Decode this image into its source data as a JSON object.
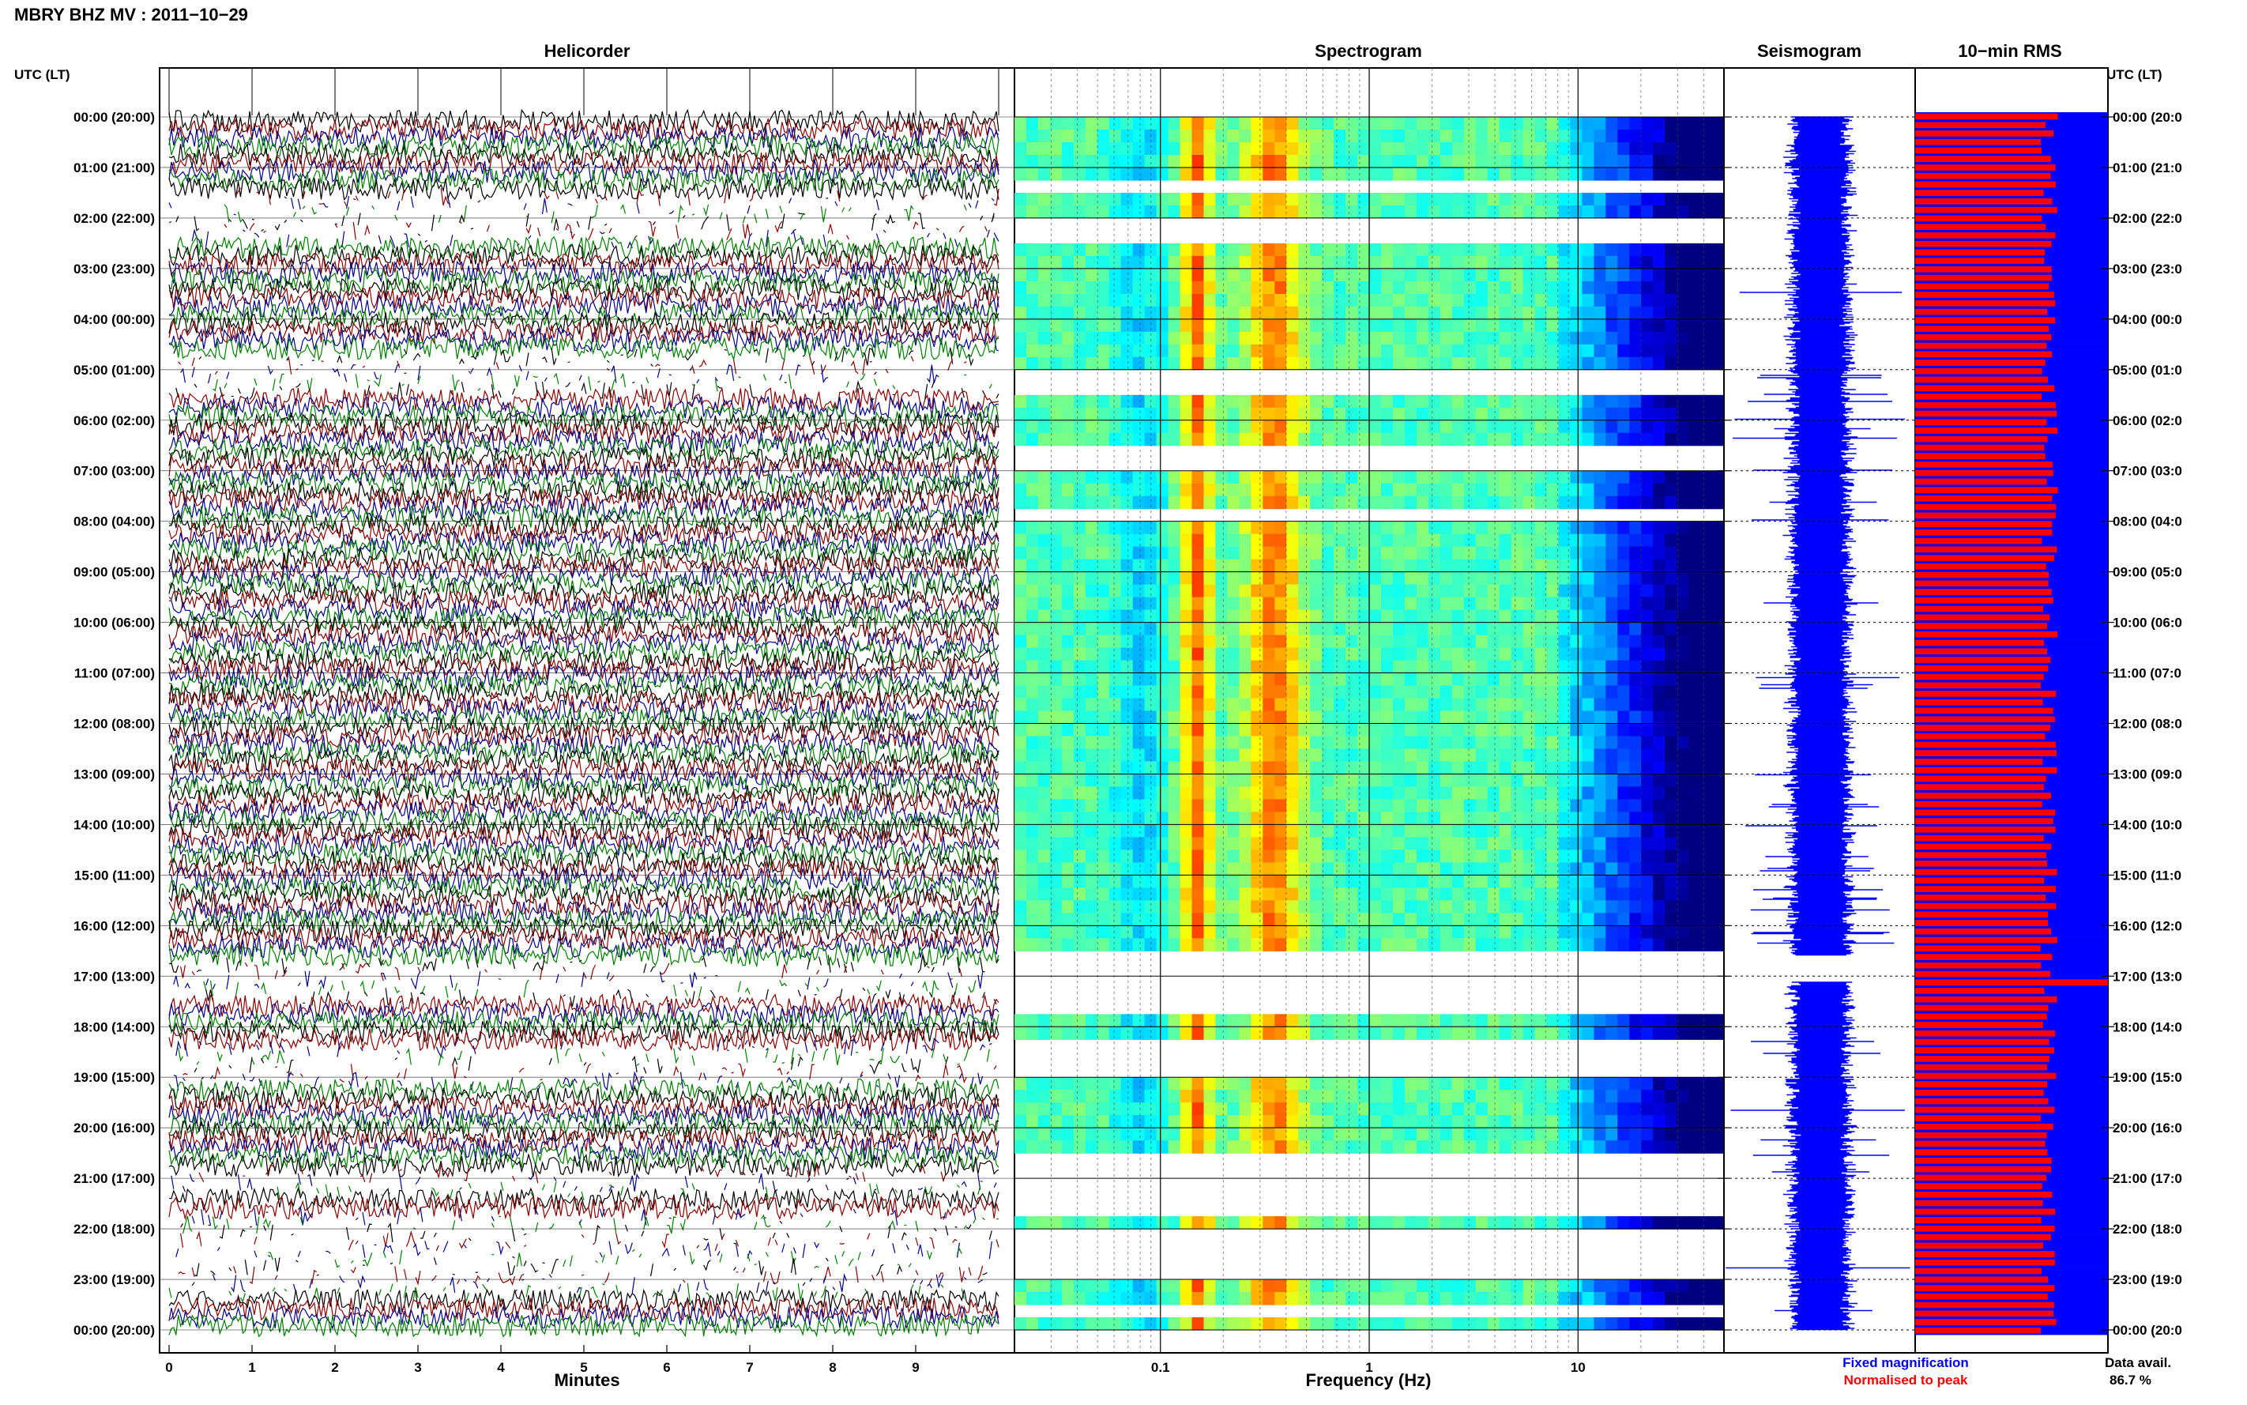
{
  "header": {
    "station_title": "MBRY BHZ MV : 2011−10−29"
  },
  "panels": {
    "helicorder": "Helicorder",
    "spectrogram": "Spectrogram",
    "seismogram": "Seismogram",
    "rms": "10−min RMS"
  },
  "axis_labels": {
    "left_time": "UTC (LT)",
    "right_time": "UTC (LT)",
    "helicorder_x": "Minutes",
    "spectrogram_x": "Frequency (Hz)"
  },
  "time_ticks": [
    "00:00 (20:00)",
    "01:00 (21:00)",
    "02:00 (22:00)",
    "03:00 (23:00)",
    "04:00 (00:00)",
    "05:00 (01:00)",
    "06:00 (02:00)",
    "07:00 (03:00)",
    "08:00 (04:00)",
    "09:00 (05:00)",
    "10:00 (06:00)",
    "11:00 (07:00)",
    "12:00 (08:00)",
    "13:00 (09:00)",
    "14:00 (10:00)",
    "15:00 (11:00)",
    "16:00 (12:00)",
    "17:00 (13:00)",
    "18:00 (14:00)",
    "19:00 (15:00)",
    "20:00 (16:00)",
    "21:00 (17:00)",
    "22:00 (18:00)",
    "23:00 (19:00)",
    "00:00 (20:00)"
  ],
  "time_ticks_right": [
    "00:00 (20:0",
    "01:00 (21:0",
    "02:00 (22:0",
    "03:00 (23:0",
    "04:00 (00:0",
    "05:00 (01:0",
    "06:00 (02:0",
    "07:00 (03:0",
    "08:00 (04:0",
    "09:00 (05:0",
    "10:00 (06:0",
    "11:00 (07:0",
    "12:00 (08:0",
    "13:00 (09:0",
    "14:00 (10:0",
    "15:00 (11:0",
    "16:00 (12:0",
    "17:00 (13:0",
    "18:00 (14:0",
    "19:00 (15:0",
    "20:00 (16:0",
    "21:00 (17:0",
    "22:00 (18:0",
    "23:00 (19:0",
    "00:00 (20:0"
  ],
  "minute_ticks": [
    "0",
    "1",
    "2",
    "3",
    "4",
    "5",
    "6",
    "7",
    "8",
    "9"
  ],
  "freq_ticks": [
    "0.1",
    "1",
    "10"
  ],
  "legend": {
    "fixed": "Fixed magnification",
    "normalised": "Normalised to peak",
    "data_avail_label": "Data avail.",
    "data_avail_value": "86.7 %"
  },
  "colors": {
    "trace_black": "#000000",
    "trace_red": "#8b0000",
    "trace_blue": "#00008b",
    "trace_green": "#008000",
    "seismogram": "#0000ff",
    "rms_fixed": "#0000ff",
    "rms_norm": "#ff0000",
    "fixed_label": "#0000ff",
    "normalised_label": "#ff0000"
  },
  "chart_data": [
    {
      "type": "line",
      "title": "Helicorder",
      "xlabel": "Minutes",
      "ylabel": "UTC (LT)",
      "xlim": [
        0,
        10
      ],
      "ylim_hours": [
        0,
        24
      ],
      "rows": 144,
      "row_minutes": 10,
      "trace_colors": [
        "black",
        "darkred",
        "darkblue",
        "green"
      ],
      "gaps_hours": [
        [
          1.5,
          2.5
        ],
        [
          4.6,
          5.5
        ],
        [
          16.6,
          17.4
        ],
        [
          18.3,
          19.1
        ],
        [
          20.8,
          21.3
        ],
        [
          21.6,
          23.2
        ]
      ],
      "grid": true
    },
    {
      "type": "heatmap",
      "title": "Spectrogram",
      "xlabel": "Frequency (Hz)",
      "xscale": "log",
      "xlim": [
        0.02,
        50
      ],
      "ylim_hours": [
        0,
        24
      ],
      "no_data_hours": [
        [
          0.9,
          1.1
        ],
        [
          1.3,
          1.5
        ],
        [
          1.9,
          2.4
        ],
        [
          4.9,
          5.6
        ],
        [
          6.5,
          7.0
        ],
        [
          7.8,
          8.1
        ],
        [
          16.6,
          17.8
        ],
        [
          18.3,
          19.1
        ],
        [
          20.6,
          21.7
        ],
        [
          21.9,
          23.0
        ],
        [
          23.4,
          23.7
        ]
      ],
      "grid": true
    },
    {
      "type": "line",
      "title": "Seismogram",
      "ylim_hours": [
        0,
        24
      ],
      "gaps_hours": [
        [
          16.6,
          17.1
        ]
      ]
    },
    {
      "type": "bar",
      "title": "10−min RMS",
      "orientation": "horizontal",
      "ylim_hours": [
        0,
        24
      ],
      "series": [
        {
          "name": "Fixed magnification",
          "color": "#0000ff",
          "value": 1.0
        },
        {
          "name": "Normalised to peak",
          "color": "#ff0000",
          "value_range": [
            0.65,
            0.74
          ],
          "peak_hour": 17.0
        }
      ],
      "data_availability_percent": 86.7
    }
  ]
}
